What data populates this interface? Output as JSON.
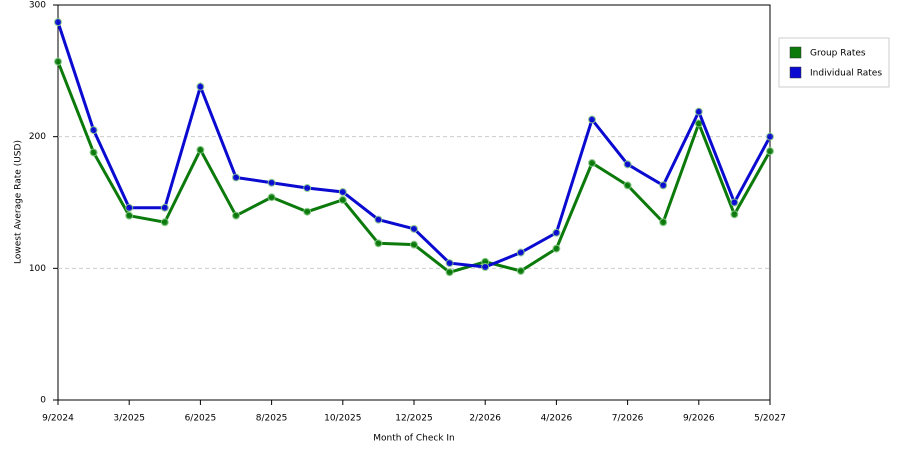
{
  "chart_data": {
    "type": "line",
    "x_label": "Month of Check In",
    "y_label": "Lowest Average Rate (USD)",
    "categories": [
      "9/2024",
      null,
      "3/2025",
      null,
      "6/2025",
      null,
      "8/2025",
      null,
      "10/2025",
      null,
      "12/2025",
      null,
      "2/2026",
      null,
      "4/2026",
      null,
      "7/2026",
      null,
      "9/2026",
      null,
      "5/2027"
    ],
    "series": [
      {
        "name": "Group Rates",
        "color": "#0b7a0b",
        "values": [
          257,
          188,
          140,
          135,
          190,
          140,
          154,
          143,
          152,
          119,
          118,
          97,
          105,
          98,
          115,
          180,
          163,
          135,
          210,
          141,
          189
        ]
      },
      {
        "name": "Individual Rates",
        "color": "#0a0ad0",
        "values": [
          287,
          205,
          146,
          146,
          238,
          169,
          165,
          161,
          158,
          137,
          130,
          104,
          101,
          112,
          127,
          213,
          179,
          163,
          219,
          150,
          200
        ]
      }
    ],
    "ylim": [
      0,
      300
    ],
    "yticks": [
      0,
      100,
      200,
      300
    ],
    "grid": true,
    "legend": "right"
  }
}
